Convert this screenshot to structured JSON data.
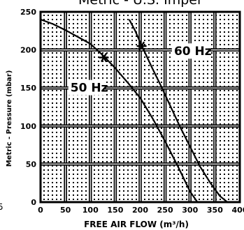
{
  "header": {
    "title_fragment": "Metric - U.S. Impel"
  },
  "edge_fragment": "5",
  "chart_data": {
    "type": "line",
    "xlabel": "FREE AIR FLOW (m³/h)",
    "ylabel": "Metric - Pressure (mbar)",
    "xlim": [
      0,
      400
    ],
    "ylim": [
      0,
      250
    ],
    "x_ticks": [
      "0",
      "50",
      "100",
      "150",
      "200",
      "250",
      "300",
      "350",
      "400"
    ],
    "y_ticks": [
      "0",
      "50",
      "100",
      "150",
      "200",
      "250"
    ],
    "grid": true,
    "series": [
      {
        "name": "50 Hz",
        "x": [
          0,
          25,
          50,
          75,
          100,
          125,
          150,
          175,
          200,
          225,
          250,
          275,
          300,
          315
        ],
        "y": [
          240,
          234,
          226,
          217,
          208,
          193,
          176,
          157,
          137,
          110,
          80,
          48,
          14,
          0
        ]
      },
      {
        "name": "60 Hz",
        "x": [
          178,
          190,
          200,
          210,
          225,
          240,
          260,
          280,
          300,
          320,
          340,
          360,
          375
        ],
        "y": [
          240,
          225,
          210,
          196,
          175,
          155,
          127,
          99,
          73,
          47,
          26,
          8,
          0
        ]
      }
    ],
    "markers": [
      {
        "series": "50 Hz",
        "x": 127,
        "y": 190
      },
      {
        "series": "60 Hz",
        "x": 203,
        "y": 205
      }
    ]
  }
}
